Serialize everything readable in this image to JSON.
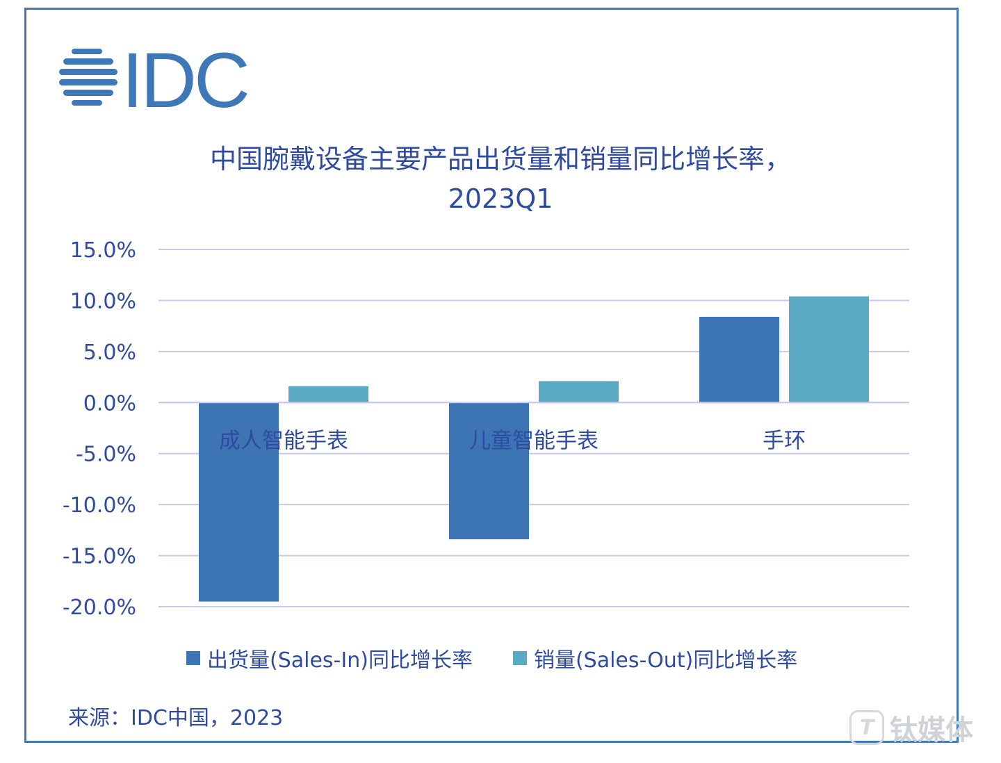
{
  "brand": {
    "logo_text": "IDC",
    "logo_color": "#3f78b8"
  },
  "colors": {
    "sales_in": "#3c74b4",
    "sales_out": "#5aaac3",
    "grid": "#c9c7ee",
    "text": "#2e4ba1",
    "frame": "#3f78b8"
  },
  "chart_data": {
    "type": "bar",
    "title": "中国腕戴设备主要产品出货量和销量同比增长率，",
    "subtitle": "2023Q1",
    "categories": [
      "成人智能手表",
      "儿童智能手表",
      "手环"
    ],
    "series": [
      {
        "name": "出货量(Sales-In)同比增长率",
        "values": [
          -19.5,
          -13.4,
          8.4
        ]
      },
      {
        "name": "销量(Sales-Out)同比增长率",
        "values": [
          1.6,
          2.1,
          10.4
        ]
      }
    ],
    "ylim": [
      -20,
      15
    ],
    "yticks": [
      15,
      10,
      5,
      0,
      -5,
      -10,
      -15,
      -20
    ],
    "ytick_labels": [
      "15.0%",
      "10.0%",
      "5.0%",
      "0.0%",
      "-5.0%",
      "-10.0%",
      "-15.0%",
      "-20.0%"
    ],
    "grid": true,
    "legend": "bottom"
  },
  "source": "来源：IDC中国，2023",
  "watermark": {
    "badge": "T",
    "text": "钛媒体"
  }
}
